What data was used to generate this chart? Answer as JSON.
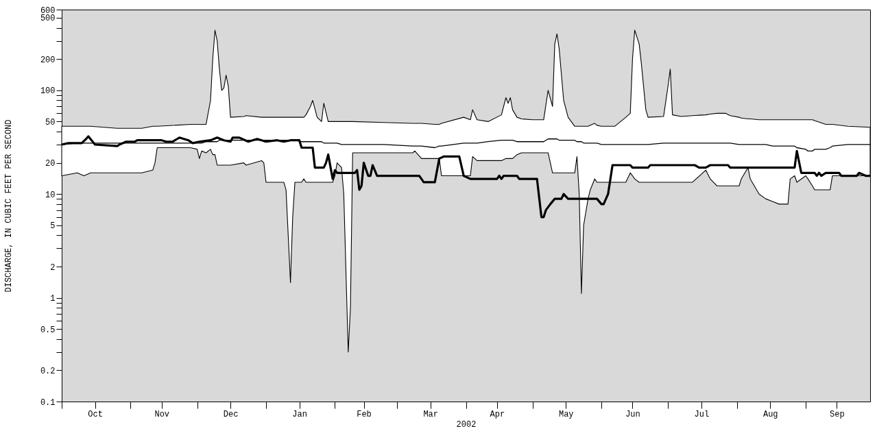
{
  "chart_data": {
    "type": "line",
    "ylabel": "DISCHARGE, IN CUBIC FEET PER SECOND",
    "xlabel": "2002",
    "log": true,
    "grid": false,
    "xlim": [
      "2001-10-01",
      "2002-09-30"
    ],
    "xticks": [
      {
        "value": "2001-10-01",
        "label": null
      },
      {
        "value": "2001-10-16",
        "label": "Oct"
      },
      {
        "value": "2001-11-01",
        "label": null
      },
      {
        "value": "2001-11-15",
        "label": "Nov"
      },
      {
        "value": "2001-12-01",
        "label": null
      },
      {
        "value": "2001-12-16",
        "label": "Dec"
      },
      {
        "value": "2002-01-01",
        "label": null
      },
      {
        "value": "2002-01-16",
        "label": "Jan"
      },
      {
        "value": "2002-02-01",
        "label": null
      },
      {
        "value": "2002-02-14",
        "label": "Feb"
      },
      {
        "value": "2002-03-01",
        "label": null
      },
      {
        "value": "2002-03-16",
        "label": "Mar"
      },
      {
        "value": "2002-04-01",
        "label": null
      },
      {
        "value": "2002-04-15",
        "label": "Apr"
      },
      {
        "value": "2002-05-01",
        "label": null
      },
      {
        "value": "2002-05-16",
        "label": "May"
      },
      {
        "value": "2002-06-01",
        "label": null
      },
      {
        "value": "2002-06-15",
        "label": "Jun"
      },
      {
        "value": "2002-07-01",
        "label": null
      },
      {
        "value": "2002-07-16",
        "label": "Jul"
      },
      {
        "value": "2002-08-01",
        "label": null
      },
      {
        "value": "2002-08-16",
        "label": "Aug"
      },
      {
        "value": "2002-09-01",
        "label": null
      },
      {
        "value": "2002-09-15",
        "label": "Sep"
      }
    ],
    "ylim": [
      0.1,
      600
    ],
    "yticks": [
      0.1,
      0.2,
      {
        "value": 0.3,
        "label": null
      },
      {
        "value": 0.4,
        "label": null
      },
      0.5,
      {
        "value": 0.6,
        "label": null
      },
      {
        "value": 0.7,
        "label": null
      },
      {
        "value": 0.8,
        "label": null
      },
      {
        "value": 0.9,
        "label": null
      },
      1,
      2,
      {
        "value": 3,
        "label": null
      },
      {
        "value": 4,
        "label": null
      },
      5,
      {
        "value": 6,
        "label": null
      },
      {
        "value": 7,
        "label": null
      },
      {
        "value": 8,
        "label": null
      },
      {
        "value": 9,
        "label": null
      },
      10,
      20,
      {
        "value": 30,
        "label": null
      },
      {
        "value": 40,
        "label": null
      },
      50,
      {
        "value": 60,
        "label": null
      },
      {
        "value": 70,
        "label": null
      },
      {
        "value": 80,
        "label": null
      },
      {
        "value": 90,
        "label": null
      },
      100,
      200,
      {
        "value": 300,
        "label": null
      },
      {
        "value": 400,
        "label": null
      },
      500,
      600
    ],
    "series": [
      {
        "color": "#000000",
        "x": [
          "2001-10-01",
          "2001-10-08",
          "2001-10-11",
          "2001-10-14",
          "2001-10-26",
          "2001-11-06",
          "2001-11-11",
          "2001-11-12",
          "2001-11-13",
          "2001-11-28",
          "2001-12-01",
          "2001-12-02",
          "2001-12-03",
          "2001-12-05",
          "2001-12-07",
          "2001-12-08",
          "2001-12-09",
          "2001-12-10",
          "2001-12-11",
          "2001-12-12",
          "2001-12-13",
          "2001-12-14",
          "2001-12-15",
          "2001-12-16",
          "2001-12-22",
          "2001-12-23",
          "2001-12-30",
          "2001-12-31",
          "2002-01-01",
          "2002-01-09",
          "2002-01-10",
          "2002-01-12",
          "2002-01-13",
          "2002-01-14",
          "2002-01-17",
          "2002-01-18",
          "2002-01-19",
          "2002-01-21",
          "2002-01-22",
          "2002-01-24",
          "2002-01-26",
          "2002-01-27",
          "2002-01-29",
          "2002-01-31",
          "2002-02-01",
          "2002-02-02",
          "2002-02-04",
          "2002-02-05",
          "2002-02-07",
          "2002-02-08",
          "2002-02-09",
          "2002-02-23",
          "2002-03-08",
          "2002-03-09",
          "2002-03-12",
          "2002-03-18",
          "2002-03-20",
          "2002-03-21",
          "2002-03-31",
          "2002-04-03",
          "2002-04-04",
          "2002-04-06",
          "2002-04-11",
          "2002-04-17",
          "2002-04-19",
          "2002-04-20",
          "2002-04-21",
          "2002-04-22",
          "2002-04-24",
          "2002-04-26",
          "2002-05-01",
          "2002-05-06",
          "2002-05-08",
          "2002-05-10",
          "2002-05-11",
          "2002-05-12",
          "2002-05-13",
          "2002-05-15",
          "2002-05-17",
          "2002-05-20",
          "2002-05-21",
          "2002-05-22",
          "2002-05-23",
          "2002-05-24",
          "2002-05-26",
          "2002-05-27",
          "2002-05-29",
          "2002-05-30",
          "2002-06-01",
          "2002-06-07",
          "2002-06-12",
          "2002-06-14",
          "2002-06-15",
          "2002-06-16",
          "2002-06-18",
          "2002-06-19",
          "2002-06-21",
          "2002-06-22",
          "2002-06-29",
          "2002-07-01",
          "2002-07-02",
          "2002-07-03",
          "2002-07-07",
          "2002-07-12",
          "2002-07-18",
          "2002-07-20",
          "2002-07-23",
          "2002-07-27",
          "2002-07-29",
          "2002-08-02",
          "2002-08-03",
          "2002-08-06",
          "2002-08-07",
          "2002-08-11",
          "2002-08-14",
          "2002-08-17",
          "2002-08-20",
          "2002-08-24",
          "2002-08-25",
          "2002-08-27",
          "2002-08-28",
          "2002-09-01",
          "2002-09-02",
          "2002-09-04",
          "2002-09-05",
          "2002-09-10",
          "2002-09-12",
          "2002-09-13",
          "2002-09-20",
          "2002-09-30"
        ],
        "values": [
          30,
          31,
          31,
          31,
          31,
          31,
          31,
          31,
          31,
          31,
          31,
          31,
          31,
          32,
          32,
          32,
          32,
          32,
          33,
          33,
          33,
          33,
          33,
          33,
          33,
          33,
          33,
          33,
          33,
          33,
          33,
          33,
          33,
          33,
          32,
          32,
          32,
          32,
          32,
          32,
          32,
          31,
          31,
          31,
          31,
          31,
          30,
          30,
          30,
          30,
          30,
          30,
          29,
          29,
          29,
          28,
          29,
          29,
          31,
          31,
          31,
          31,
          32,
          33,
          33,
          33,
          33,
          33,
          32,
          32,
          32,
          32,
          34,
          34,
          34,
          34,
          33,
          33,
          33,
          33,
          32,
          32,
          32,
          31,
          31,
          31,
          31,
          31,
          30,
          30,
          30,
          30,
          30,
          30,
          30,
          30,
          30,
          30,
          31,
          31,
          31,
          31,
          31,
          31,
          31,
          31,
          31,
          31,
          31,
          30,
          30,
          30,
          30,
          30,
          30,
          29,
          29,
          29,
          29,
          29,
          28,
          27,
          26,
          26,
          27,
          27,
          28,
          29,
          30,
          30
        ],
        "lower": [
          15,
          16,
          15,
          16,
          16,
          16,
          17,
          20,
          28,
          28,
          27,
          22,
          26,
          25,
          27,
          24,
          24,
          19,
          19,
          19,
          19,
          19,
          19,
          19,
          20,
          19,
          21,
          20,
          13,
          13,
          11,
          1.4,
          6,
          13,
          13,
          14,
          13,
          13,
          13,
          13,
          13,
          13,
          13,
          13,
          15,
          20,
          18,
          10,
          0.3,
          0.8,
          25,
          25,
          25,
          26,
          22,
          22,
          22,
          15,
          15,
          15,
          23,
          21,
          21,
          21,
          22,
          22,
          22,
          22,
          24,
          25,
          25,
          25,
          25,
          16,
          16,
          16,
          16,
          16,
          16,
          16,
          23,
          10,
          1.1,
          5,
          9,
          11,
          14,
          13,
          13,
          13,
          13,
          16,
          15,
          14,
          13,
          13,
          13,
          13,
          13,
          13,
          13,
          13,
          13,
          13,
          17,
          14,
          12,
          12,
          12,
          12,
          14,
          18,
          14,
          10,
          9,
          8.5,
          8,
          8,
          14,
          15,
          13,
          15,
          14,
          12,
          11,
          11,
          11,
          15,
          15,
          15
        ],
        "upper": [
          45,
          45,
          45,
          45,
          43,
          43,
          45,
          45,
          45,
          47,
          47,
          47,
          47,
          47,
          80,
          200,
          380,
          300,
          160,
          100,
          105,
          140,
          110,
          55,
          56,
          57,
          55,
          55,
          55,
          55,
          55,
          55,
          55,
          55,
          55,
          55,
          58,
          70,
          80,
          55,
          50,
          75,
          50,
          50,
          50,
          50,
          50,
          50,
          50,
          50,
          50,
          49,
          48,
          48,
          48,
          47,
          47,
          48,
          55,
          52,
          65,
          52,
          50,
          58,
          85,
          75,
          85,
          65,
          55,
          53,
          52,
          52,
          100,
          70,
          280,
          350,
          250,
          80,
          55,
          45,
          45,
          45,
          45,
          45,
          45,
          46,
          48,
          46,
          45,
          45,
          55,
          60,
          200,
          380,
          280,
          180,
          65,
          55,
          56,
          110,
          160,
          58,
          56,
          57,
          58,
          59,
          60,
          60,
          57,
          55,
          54,
          53,
          53,
          52,
          52,
          52,
          52,
          52,
          52,
          52,
          52,
          52,
          52,
          52,
          51,
          47,
          47,
          47,
          45,
          44
        ]
      },
      {
        "color": "#000000",
        "x": [
          "2001-10-01",
          "2001-10-04",
          "2001-10-10",
          "2001-10-12",
          "2001-10-13",
          "2001-10-16",
          "2001-10-26",
          "2001-10-27",
          "2001-10-30",
          "2001-11-03",
          "2001-11-04",
          "2001-11-15",
          "2001-11-17",
          "2001-11-20",
          "2001-11-22",
          "2001-11-23",
          "2001-11-27",
          "2001-11-29",
          "2001-12-02",
          "2001-12-07",
          "2001-12-10",
          "2001-12-13",
          "2001-12-16",
          "2001-12-17",
          "2001-12-20",
          "2001-12-24",
          "2001-12-28",
          "2002-01-01",
          "2002-01-06",
          "2002-01-09",
          "2002-01-12",
          "2002-01-16",
          "2002-01-17",
          "2002-01-22",
          "2002-01-23",
          "2002-01-27",
          "2002-01-28",
          "2002-01-29",
          "2002-01-31",
          "2002-02-01",
          "2002-02-02",
          "2002-02-10",
          "2002-02-11",
          "2002-02-12",
          "2002-02-13",
          "2002-02-14",
          "2002-02-16",
          "2002-02-17",
          "2002-02-18",
          "2002-02-20",
          "2002-03-11",
          "2002-03-13",
          "2002-03-18",
          "2002-03-20",
          "2002-03-22",
          "2002-03-29",
          "2002-03-31",
          "2002-04-03",
          "2002-04-15",
          "2002-04-16",
          "2002-04-17",
          "2002-04-18",
          "2002-04-24",
          "2002-04-25",
          "2002-05-03",
          "2002-05-05",
          "2002-05-06",
          "2002-05-07",
          "2002-05-09",
          "2002-05-11",
          "2002-05-14",
          "2002-05-15",
          "2002-05-17",
          "2002-05-30",
          "2002-06-01",
          "2002-06-02",
          "2002-06-04",
          "2002-06-06",
          "2002-06-14",
          "2002-06-15",
          "2002-06-22",
          "2002-06-23",
          "2002-07-13",
          "2002-07-15",
          "2002-07-18",
          "2002-07-20",
          "2002-07-28",
          "2002-07-29",
          "2002-08-27",
          "2002-08-28",
          "2002-08-30",
          "2002-09-05",
          "2002-09-06",
          "2002-09-07",
          "2002-09-08",
          "2002-09-10",
          "2002-09-16",
          "2002-09-17",
          "2002-09-24",
          "2002-09-25",
          "2002-09-28",
          "2002-09-30"
        ],
        "values": [
          30,
          31,
          31,
          34,
          36,
          30,
          29,
          30,
          32,
          32,
          33,
          33,
          32,
          32,
          34,
          35,
          33,
          31,
          32,
          33,
          35,
          33,
          32,
          35,
          35,
          32,
          34,
          32,
          33,
          32,
          33,
          33,
          28,
          28,
          18,
          18,
          20,
          24,
          14,
          17,
          16,
          16,
          17,
          11,
          12,
          20,
          15,
          15,
          19,
          15,
          15,
          13,
          13,
          22,
          23,
          23,
          15,
          14,
          14,
          15,
          14,
          15,
          15,
          14,
          14,
          6,
          6,
          7,
          8,
          9,
          9,
          10,
          9,
          9,
          8,
          8,
          10,
          19,
          19,
          18,
          18,
          19,
          19,
          18,
          18,
          19,
          19,
          18,
          18,
          26,
          16,
          16,
          15,
          16,
          15,
          16,
          16,
          15,
          15,
          16,
          15,
          15
        ]
      }
    ]
  }
}
